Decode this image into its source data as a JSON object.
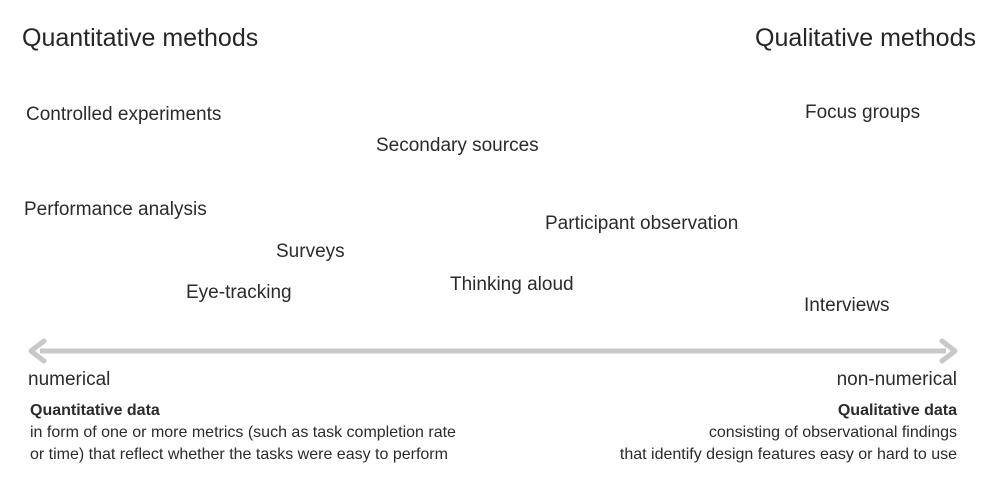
{
  "headings": {
    "left": "Quantitative methods",
    "right": "Qualitative methods"
  },
  "methods": [
    "Controlled experiments",
    "Secondary sources",
    "Focus groups",
    "Performance analysis",
    "Participant observation",
    "Surveys",
    "Thinking aloud",
    "Eye-tracking",
    "Interviews"
  ],
  "axis": {
    "left_label": "numerical",
    "right_label": "non-numerical",
    "color": "#c8c8c8"
  },
  "descriptions": {
    "left": {
      "title": "Quantitative data",
      "line1": "in form of one or more metrics (such as task completion rate",
      "line2": "or time) that reflect whether the tasks were easy to perform"
    },
    "right": {
      "title": "Qualitative data",
      "line1": "consisting of observational findings",
      "line2": "that identify design features easy or hard to use"
    }
  }
}
